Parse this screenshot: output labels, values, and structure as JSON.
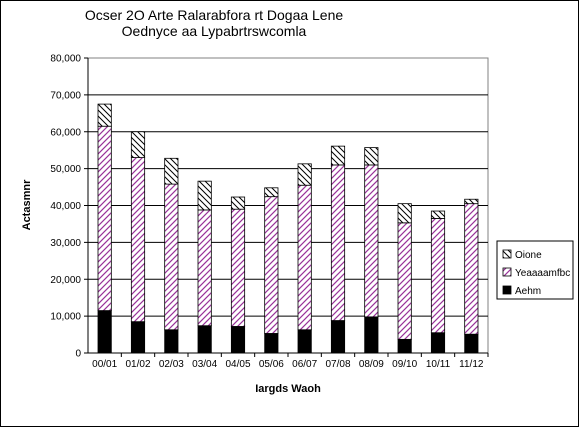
{
  "chart_data": {
    "type": "bar",
    "stacked": true,
    "title": [
      "Ocser 2O Arte Ralarabfora rt Dogaa Lene",
      "Oednyce aa Lypabrtrswcomla"
    ],
    "xlabel": "Iargds Waoh",
    "ylabel": "Actasmnr",
    "ylim": [
      0,
      80000
    ],
    "yticks": [
      "0",
      "10,000",
      "20,000",
      "30,000",
      "40,000",
      "50,000",
      "60,000",
      "70,000",
      "80,000"
    ],
    "grid": true,
    "legend_position": "right",
    "categories": [
      "00/01",
      "01/02",
      "02/03",
      "03/04",
      "04/05",
      "05/06",
      "06/07",
      "07/08",
      "08/09",
      "09/10",
      "10/11",
      "11/12"
    ],
    "series": [
      {
        "name": "Aehm",
        "pattern": "solid",
        "color": "#000000",
        "values": [
          11500,
          8500,
          6300,
          7400,
          7200,
          5300,
          6300,
          8800,
          9800,
          3700,
          5500,
          5100
        ]
      },
      {
        "name": "Yeaaaamfbc",
        "pattern": "diagonal",
        "color": "#993399",
        "values": [
          50000,
          44500,
          39500,
          31400,
          31800,
          37100,
          39200,
          42200,
          41200,
          31600,
          31000,
          35400
        ]
      },
      {
        "name": "Oione",
        "pattern": "hatch",
        "color": "#000000",
        "values": [
          6000,
          7000,
          7000,
          7800,
          3300,
          2400,
          5800,
          5100,
          4700,
          5200,
          2000,
          1200
        ]
      }
    ]
  }
}
